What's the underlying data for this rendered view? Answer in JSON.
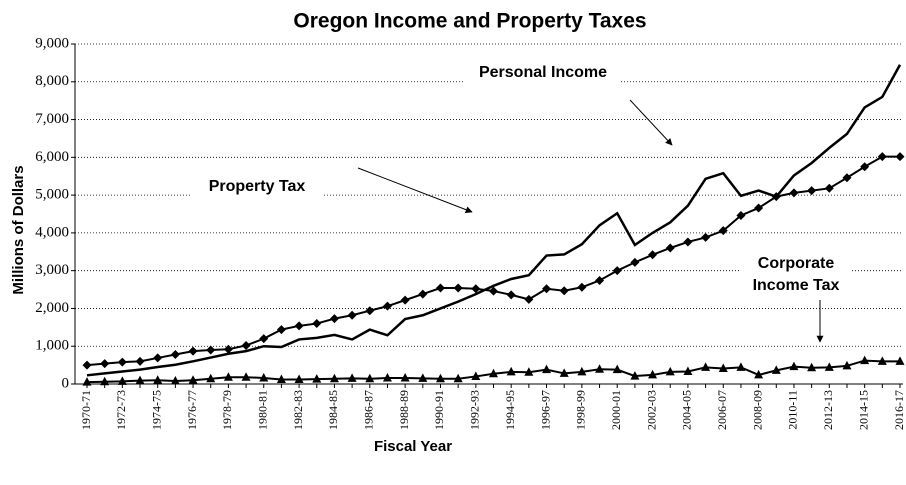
{
  "chart_data": {
    "type": "line",
    "title": "Oregon Income and Property Taxes",
    "x_label": "Fiscal Year",
    "y_label": "Millions of Dollars",
    "categories": [
      "1970-71",
      null,
      "1972-73",
      null,
      "1974-75",
      null,
      "1976-77",
      null,
      "1978-79",
      null,
      "1980-81",
      null,
      "1982-83",
      null,
      "1984-85",
      null,
      "1986-87",
      null,
      "1988-89",
      null,
      "1990-91",
      null,
      "1992-93",
      null,
      "1994-95",
      null,
      "1996-97",
      null,
      "1998-99",
      null,
      "2000-01",
      null,
      "2002-03",
      null,
      "2004-05",
      null,
      "2006-07",
      null,
      "2008-09",
      null,
      "2010-11",
      null,
      "2012-13",
      null,
      "2014-15",
      null,
      "2016-17"
    ],
    "series": [
      {
        "color": "#000000",
        "marker": "none",
        "values": [
          230,
          280,
          330,
          380,
          450,
          510,
          600,
          700,
          800,
          870,
          1000,
          980,
          1180,
          1220,
          1300,
          1180,
          1440,
          1290,
          1720,
          1820,
          2000,
          2180,
          2380,
          2600,
          2780,
          2880,
          3400,
          3430,
          3700,
          4200,
          4520,
          3680,
          4000,
          4280,
          4720,
          5430,
          5580,
          4980,
          5120,
          4960,
          5520,
          5850,
          6250,
          6620,
          7320,
          7600,
          8450
        ]
      },
      {
        "color": "#000000",
        "marker": "diamond",
        "values": [
          500,
          540,
          580,
          600,
          690,
          780,
          870,
          900,
          920,
          1020,
          1200,
          1440,
          1540,
          1600,
          1730,
          1820,
          1940,
          2060,
          2220,
          2380,
          2540,
          2540,
          2520,
          2460,
          2360,
          2240,
          2520,
          2470,
          2560,
          2740,
          3000,
          3220,
          3420,
          3600,
          3760,
          3880,
          4060,
          4460,
          4660,
          4960,
          5060,
          5120,
          5180,
          5460,
          5750,
          6020,
          6020
        ]
      },
      {
        "color": "#000000",
        "marker": "triangle",
        "values": [
          50,
          60,
          70,
          90,
          100,
          80,
          100,
          140,
          180,
          180,
          160,
          120,
          120,
          130,
          140,
          150,
          140,
          160,
          160,
          150,
          140,
          140,
          200,
          270,
          320,
          310,
          380,
          280,
          320,
          390,
          380,
          210,
          240,
          320,
          330,
          440,
          410,
          440,
          240,
          360,
          460,
          430,
          440,
          480,
          620,
          600,
          600
        ]
      }
    ],
    "annotations": [
      {
        "text": "Personal Income"
      },
      {
        "text": "Property Tax"
      },
      {
        "lines": [
          "Corporate",
          "Income Tax"
        ]
      }
    ],
    "ylim": [
      0,
      9000
    ],
    "yticks": [
      0,
      {
        "value": 1000,
        "label": "1,000"
      },
      {
        "value": 2000,
        "label": "2,000"
      },
      {
        "value": 3000,
        "label": "3,000"
      },
      {
        "value": 4000,
        "label": "4,000"
      },
      {
        "value": 5000,
        "label": "5,000"
      },
      {
        "value": 6000,
        "label": "6,000"
      },
      {
        "value": 7000,
        "label": "7,000"
      },
      {
        "value": 8000,
        "label": "8,000"
      },
      {
        "value": 9000,
        "label": "9,000"
      }
    ],
    "grid": true
  }
}
